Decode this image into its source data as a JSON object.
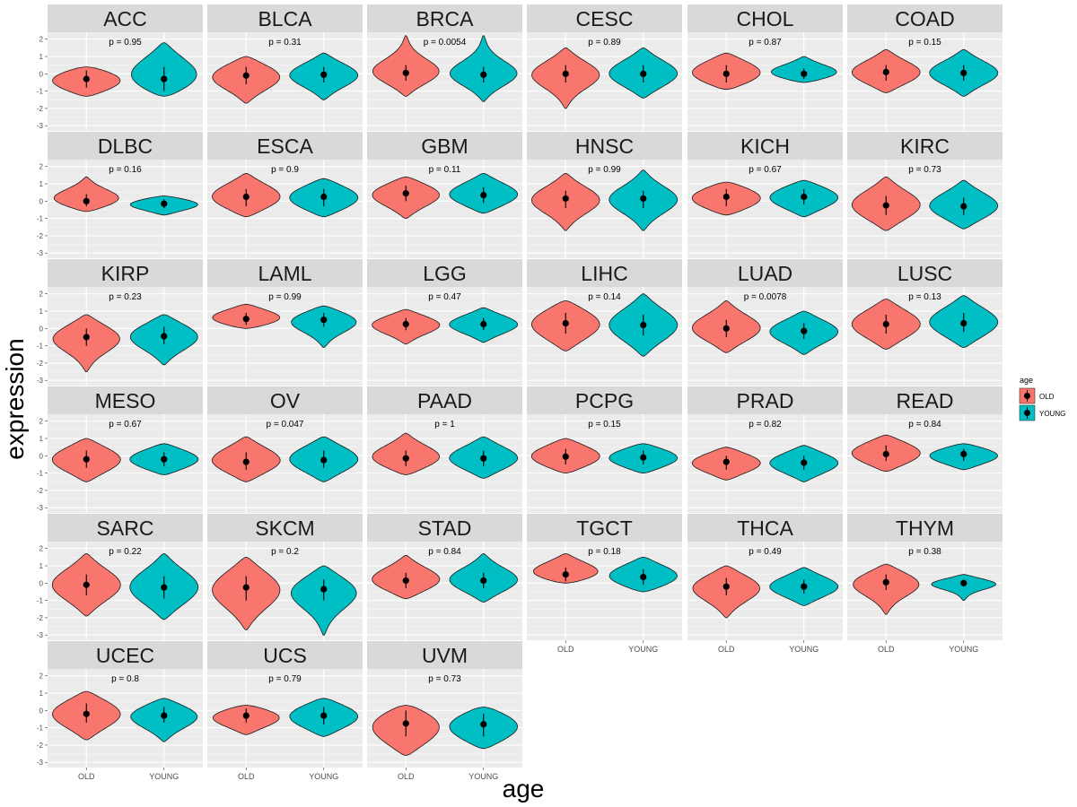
{
  "chart_data": {
    "type": "violin",
    "xlabel": "age",
    "ylabel": "expression",
    "categories": [
      "OLD",
      "YOUNG"
    ],
    "ylim": [
      -3.3,
      2.4
    ],
    "y_ticks": [
      2,
      1,
      0,
      -1,
      -2,
      -3
    ],
    "y_tick_labels": [
      "2",
      "1",
      "0",
      "-1",
      "-2",
      "-3"
    ],
    "legend": {
      "title": "age",
      "position": "right",
      "items": [
        {
          "label": "OLD",
          "color": "#F8766D"
        },
        {
          "label": "YOUNG",
          "color": "#00BFC4"
        }
      ]
    },
    "panels": [
      {
        "name": "ACC",
        "p_label": "p = 0.95",
        "old": {
          "min": -1.3,
          "max": 0.4,
          "median": -0.3,
          "q1": -0.8,
          "q3": 0.2
        },
        "young": {
          "min": -1.3,
          "max": 1.8,
          "median": -0.3,
          "q1": -1.0,
          "q3": 0.4
        }
      },
      {
        "name": "BLCA",
        "p_label": "p = 0.31",
        "old": {
          "min": -1.7,
          "max": 1.0,
          "median": -0.1,
          "q1": -0.6,
          "q3": 0.4
        },
        "young": {
          "min": -1.5,
          "max": 1.2,
          "median": -0.05,
          "q1": -0.5,
          "q3": 0.4
        }
      },
      {
        "name": "BRCA",
        "p_label": "p = 0.0054",
        "old": {
          "min": -1.3,
          "max": 2.2,
          "median": 0.05,
          "q1": -0.4,
          "q3": 0.5
        },
        "young": {
          "min": -1.6,
          "max": 2.2,
          "median": -0.05,
          "q1": -0.5,
          "q3": 0.4
        }
      },
      {
        "name": "CESC",
        "p_label": "p = 0.89",
        "old": {
          "min": -2.0,
          "max": 1.5,
          "median": 0.0,
          "q1": -0.5,
          "q3": 0.5
        },
        "young": {
          "min": -1.4,
          "max": 1.5,
          "median": 0.0,
          "q1": -0.5,
          "q3": 0.5
        }
      },
      {
        "name": "CHOL",
        "p_label": "p = 0.87",
        "old": {
          "min": -0.9,
          "max": 1.2,
          "median": 0.0,
          "q1": -0.5,
          "q3": 0.5
        },
        "young": {
          "min": -0.5,
          "max": 1.0,
          "median": 0.0,
          "q1": -0.3,
          "q3": 0.3
        }
      },
      {
        "name": "COAD",
        "p_label": "p = 0.15",
        "old": {
          "min": -1.1,
          "max": 1.4,
          "median": 0.1,
          "q1": -0.4,
          "q3": 0.5
        },
        "young": {
          "min": -1.3,
          "max": 1.4,
          "median": 0.05,
          "q1": -0.4,
          "q3": 0.5
        }
      },
      {
        "name": "DLBC",
        "p_label": "p = 0.16",
        "old": {
          "min": -0.6,
          "max": 1.4,
          "median": 0.0,
          "q1": -0.3,
          "q3": 0.4
        },
        "young": {
          "min": -0.8,
          "max": 0.3,
          "median": -0.15,
          "q1": -0.4,
          "q3": 0.1
        }
      },
      {
        "name": "ESCA",
        "p_label": "p = 0.9",
        "old": {
          "min": -0.9,
          "max": 1.6,
          "median": 0.25,
          "q1": -0.3,
          "q3": 0.7
        },
        "young": {
          "min": -0.9,
          "max": 1.3,
          "median": 0.25,
          "q1": -0.3,
          "q3": 0.7
        }
      },
      {
        "name": "GBM",
        "p_label": "p = 0.11",
        "old": {
          "min": -1.0,
          "max": 1.4,
          "median": 0.45,
          "q1": 0.0,
          "q3": 0.9
        },
        "young": {
          "min": -0.7,
          "max": 1.6,
          "median": 0.35,
          "q1": -0.1,
          "q3": 0.8
        }
      },
      {
        "name": "HNSC",
        "p_label": "p = 0.99",
        "old": {
          "min": -1.7,
          "max": 1.6,
          "median": 0.15,
          "q1": -0.4,
          "q3": 0.6
        },
        "young": {
          "min": -1.7,
          "max": 1.8,
          "median": 0.15,
          "q1": -0.4,
          "q3": 0.6
        }
      },
      {
        "name": "KICH",
        "p_label": "p = 0.67",
        "old": {
          "min": -0.8,
          "max": 1.1,
          "median": 0.25,
          "q1": -0.3,
          "q3": 0.7
        },
        "young": {
          "min": -0.9,
          "max": 1.2,
          "median": 0.25,
          "q1": -0.2,
          "q3": 0.7
        }
      },
      {
        "name": "KIRC",
        "p_label": "p = 0.73",
        "old": {
          "min": -1.7,
          "max": 1.4,
          "median": -0.25,
          "q1": -0.8,
          "q3": 0.3
        },
        "young": {
          "min": -1.6,
          "max": 1.2,
          "median": -0.3,
          "q1": -0.8,
          "q3": 0.2
        }
      },
      {
        "name": "KIRP",
        "p_label": "p = 0.23",
        "old": {
          "min": -2.5,
          "max": 0.8,
          "median": -0.5,
          "q1": -1.0,
          "q3": 0.0
        },
        "young": {
          "min": -2.1,
          "max": 0.8,
          "median": -0.45,
          "q1": -0.9,
          "q3": 0.1
        }
      },
      {
        "name": "LAML",
        "p_label": "p = 0.99",
        "old": {
          "min": 0.0,
          "max": 1.4,
          "median": 0.55,
          "q1": 0.2,
          "q3": 0.9
        },
        "young": {
          "min": -1.1,
          "max": 1.3,
          "median": 0.5,
          "q1": 0.1,
          "q3": 0.9
        }
      },
      {
        "name": "LGG",
        "p_label": "p = 0.47",
        "old": {
          "min": -0.9,
          "max": 1.1,
          "median": 0.25,
          "q1": -0.1,
          "q3": 0.6
        },
        "young": {
          "min": -0.8,
          "max": 1.2,
          "median": 0.25,
          "q1": -0.1,
          "q3": 0.6
        }
      },
      {
        "name": "LIHC",
        "p_label": "p = 0.14",
        "old": {
          "min": -1.3,
          "max": 1.6,
          "median": 0.3,
          "q1": -0.3,
          "q3": 0.9
        },
        "young": {
          "min": -1.6,
          "max": 2.0,
          "median": 0.2,
          "q1": -0.4,
          "q3": 0.8
        }
      },
      {
        "name": "LUAD",
        "p_label": "p = 0.0078",
        "old": {
          "min": -1.4,
          "max": 1.6,
          "median": 0.0,
          "q1": -0.5,
          "q3": 0.5
        },
        "young": {
          "min": -1.5,
          "max": 1.0,
          "median": -0.15,
          "q1": -0.6,
          "q3": 0.3
        }
      },
      {
        "name": "LUSC",
        "p_label": "p = 0.13",
        "old": {
          "min": -1.2,
          "max": 1.7,
          "median": 0.25,
          "q1": -0.3,
          "q3": 0.8
        },
        "young": {
          "min": -1.1,
          "max": 1.9,
          "median": 0.3,
          "q1": -0.2,
          "q3": 0.9
        }
      },
      {
        "name": "MESO",
        "p_label": "p = 0.67",
        "old": {
          "min": -1.5,
          "max": 1.0,
          "median": -0.2,
          "q1": -0.7,
          "q3": 0.3
        },
        "young": {
          "min": -1.1,
          "max": 0.7,
          "median": -0.2,
          "q1": -0.6,
          "q3": 0.2
        }
      },
      {
        "name": "OV",
        "p_label": "p = 0.047",
        "old": {
          "min": -1.5,
          "max": 1.1,
          "median": -0.35,
          "q1": -0.8,
          "q3": 0.2
        },
        "young": {
          "min": -1.5,
          "max": 1.1,
          "median": -0.25,
          "q1": -0.7,
          "q3": 0.3
        }
      },
      {
        "name": "PAAD",
        "p_label": "p = 1",
        "old": {
          "min": -1.1,
          "max": 1.3,
          "median": -0.15,
          "q1": -0.6,
          "q3": 0.3
        },
        "young": {
          "min": -1.3,
          "max": 1.1,
          "median": -0.15,
          "q1": -0.6,
          "q3": 0.3
        }
      },
      {
        "name": "PCPG",
        "p_label": "p = 0.15",
        "old": {
          "min": -1.0,
          "max": 1.0,
          "median": -0.05,
          "q1": -0.5,
          "q3": 0.4
        },
        "young": {
          "min": -1.0,
          "max": 0.7,
          "median": -0.1,
          "q1": -0.5,
          "q3": 0.3
        }
      },
      {
        "name": "PRAD",
        "p_label": "p = 0.82",
        "old": {
          "min": -1.4,
          "max": 0.5,
          "median": -0.35,
          "q1": -0.8,
          "q3": 0.0
        },
        "young": {
          "min": -1.5,
          "max": 0.6,
          "median": -0.4,
          "q1": -0.8,
          "q3": 0.0
        }
      },
      {
        "name": "READ",
        "p_label": "p = 0.84",
        "old": {
          "min": -0.9,
          "max": 1.2,
          "median": 0.1,
          "q1": -0.3,
          "q3": 0.6
        },
        "young": {
          "min": -0.8,
          "max": 0.7,
          "median": 0.1,
          "q1": -0.3,
          "q3": 0.4
        }
      },
      {
        "name": "SARC",
        "p_label": "p = 0.22",
        "old": {
          "min": -1.9,
          "max": 1.7,
          "median": -0.1,
          "q1": -0.7,
          "q3": 0.5
        },
        "young": {
          "min": -2.1,
          "max": 1.7,
          "median": -0.25,
          "q1": -0.9,
          "q3": 0.4
        }
      },
      {
        "name": "SKCM",
        "p_label": "p = 0.2",
        "old": {
          "min": -2.7,
          "max": 1.5,
          "median": -0.25,
          "q1": -1.0,
          "q3": 0.4
        },
        "young": {
          "min": -3.0,
          "max": 1.0,
          "median": -0.35,
          "q1": -1.0,
          "q3": 0.2
        }
      },
      {
        "name": "STAD",
        "p_label": "p = 0.84",
        "old": {
          "min": -0.9,
          "max": 1.6,
          "median": 0.15,
          "q1": -0.3,
          "q3": 0.6
        },
        "young": {
          "min": -1.1,
          "max": 1.7,
          "median": 0.15,
          "q1": -0.3,
          "q3": 0.6
        }
      },
      {
        "name": "TGCT",
        "p_label": "p = 0.18",
        "old": {
          "min": 0.0,
          "max": 1.7,
          "median": 0.5,
          "q1": 0.1,
          "q3": 0.9
        },
        "young": {
          "min": -0.5,
          "max": 1.5,
          "median": 0.35,
          "q1": -0.1,
          "q3": 0.8
        }
      },
      {
        "name": "THCA",
        "p_label": "p = 0.49",
        "old": {
          "min": -2.0,
          "max": 1.0,
          "median": -0.2,
          "q1": -0.7,
          "q3": 0.3
        },
        "young": {
          "min": -1.3,
          "max": 0.9,
          "median": -0.2,
          "q1": -0.6,
          "q3": 0.2
        }
      },
      {
        "name": "THYM",
        "p_label": "p = 0.38",
        "old": {
          "min": -1.8,
          "max": 1.1,
          "median": 0.05,
          "q1": -0.4,
          "q3": 0.5
        },
        "young": {
          "min": -1.0,
          "max": 0.5,
          "median": 0.0,
          "q1": -0.2,
          "q3": 0.2
        }
      },
      {
        "name": "UCEC",
        "p_label": "p = 0.8",
        "old": {
          "min": -1.7,
          "max": 1.1,
          "median": -0.2,
          "q1": -0.7,
          "q3": 0.4
        },
        "young": {
          "min": -1.8,
          "max": 0.7,
          "median": -0.3,
          "q1": -0.7,
          "q3": 0.2
        }
      },
      {
        "name": "UCS",
        "p_label": "p = 0.79",
        "old": {
          "min": -1.4,
          "max": 0.3,
          "median": -0.3,
          "q1": -0.7,
          "q3": 0.1
        },
        "young": {
          "min": -1.5,
          "max": 0.7,
          "median": -0.3,
          "q1": -0.8,
          "q3": 0.2
        }
      },
      {
        "name": "UVM",
        "p_label": "p = 0.73",
        "old": {
          "min": -2.6,
          "max": 0.3,
          "median": -0.75,
          "q1": -1.5,
          "q3": 0.0
        },
        "young": {
          "min": -2.2,
          "max": 0.2,
          "median": -0.8,
          "q1": -1.5,
          "q3": -0.2
        }
      }
    ]
  }
}
